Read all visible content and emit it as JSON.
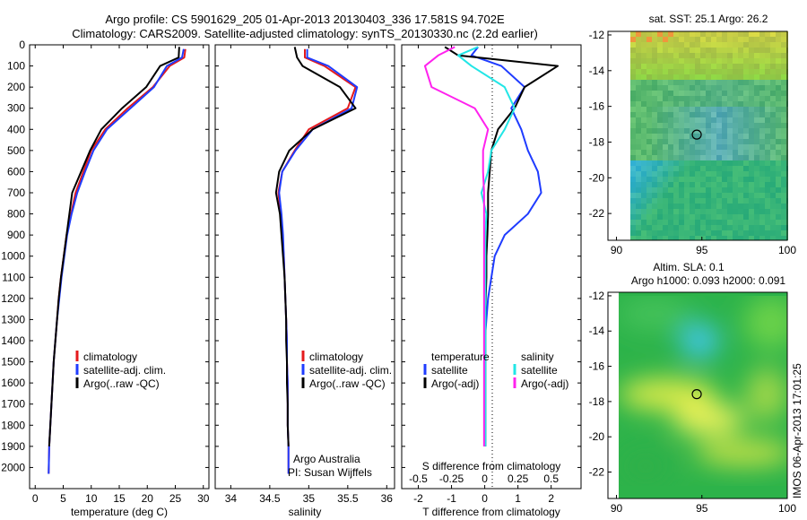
{
  "header": {
    "line1": "Argo profile: CS 5901629_205 01-Apr-2013 20130403_336 17.581S 94.702E",
    "line2": "Climatology: CARS2009. Satellite-adjusted climatology: synTS_20130330.nc (2.2d earlier)"
  },
  "colors": {
    "climatology": "#e41a1c",
    "satellite": "#1f3cff",
    "argo": "#000000",
    "sat_salinity": "#22e6e6",
    "argo_salinity": "#ff22ee"
  },
  "chart_data": [
    {
      "type": "line",
      "panel": "temperature",
      "xlabel": "temperature (deg C)",
      "ylabel": "",
      "xlim": [
        -1,
        31
      ],
      "ylim": [
        2100,
        0
      ],
      "xticks": [
        0,
        5,
        10,
        15,
        20,
        25,
        30
      ],
      "yticks": [
        0,
        100,
        200,
        300,
        400,
        500,
        600,
        700,
        800,
        900,
        1000,
        1100,
        1200,
        1300,
        1400,
        1500,
        1600,
        1700,
        1800,
        1900,
        2000
      ],
      "legend": [
        "climatology",
        "satellite-adj. clim.",
        "Argo(..raw -QC)"
      ],
      "legend_placement": "lower-center",
      "series": [
        {
          "name": "climatology",
          "color": "#e41a1c",
          "x": [
            26.8,
            26.6,
            24.0,
            21.0,
            16.5,
            12.5,
            10.0,
            8.6,
            7.2,
            6.4,
            5.6,
            5.1,
            4.6,
            4.2,
            3.9,
            3.6,
            3.3,
            3.1,
            2.9,
            2.7,
            2.5,
            2.4
          ],
          "y": [
            20,
            60,
            100,
            200,
            300,
            400,
            500,
            600,
            700,
            800,
            900,
            1000,
            1100,
            1200,
            1300,
            1400,
            1500,
            1600,
            1700,
            1800,
            1900,
            2030
          ]
        },
        {
          "name": "satellite-adj. clim.",
          "color": "#1f3cff",
          "x": [
            26.5,
            26.2,
            23.5,
            21.2,
            17.0,
            12.8,
            10.4,
            8.9,
            7.5,
            6.5,
            5.7,
            5.2,
            4.7,
            4.3,
            3.9,
            3.6,
            3.3,
            3.1,
            2.9,
            2.7,
            2.5,
            2.4
          ],
          "y": [
            20,
            60,
            100,
            200,
            300,
            400,
            500,
            600,
            700,
            800,
            900,
            1000,
            1100,
            1200,
            1300,
            1400,
            1500,
            1600,
            1700,
            1800,
            1900,
            2030
          ]
        },
        {
          "name": "Argo(..raw -QC)",
          "color": "#000000",
          "x": [
            25.7,
            25.6,
            22.3,
            19.8,
            15.5,
            11.8,
            9.8,
            8.2,
            6.6,
            6.1,
            5.6,
            5.1,
            4.6,
            4.2,
            3.9,
            3.6,
            3.3,
            3.1,
            2.9,
            2.7,
            2.5
          ],
          "y": [
            10,
            60,
            100,
            200,
            300,
            400,
            500,
            600,
            700,
            800,
            900,
            1000,
            1100,
            1200,
            1300,
            1400,
            1500,
            1600,
            1700,
            1800,
            1900
          ]
        }
      ]
    },
    {
      "type": "line",
      "panel": "salinity",
      "xlabel": "salinity",
      "ylabel": "",
      "xlim": [
        33.8,
        36.1
      ],
      "ylim": [
        2100,
        0
      ],
      "xticks": [
        34,
        34.5,
        35,
        35.5,
        36
      ],
      "legend": [
        "climatology",
        "satellite-adj. clim.",
        "Argo(..raw -QC)"
      ],
      "legend_placement": "lower-right",
      "annotations": [
        "Argo Australia",
        "PI: Susan Wijffels"
      ],
      "series": [
        {
          "name": "climatology",
          "color": "#e41a1c",
          "x": [
            34.95,
            34.95,
            35.2,
            35.6,
            35.5,
            35.0,
            34.82,
            34.66,
            34.61,
            34.64,
            34.66,
            34.68,
            34.69,
            34.7,
            34.71,
            34.72,
            34.72,
            34.73,
            34.73,
            34.73,
            34.74,
            34.74
          ],
          "y": [
            20,
            60,
            100,
            200,
            300,
            400,
            500,
            600,
            700,
            800,
            900,
            1000,
            1100,
            1200,
            1300,
            1400,
            1500,
            1600,
            1700,
            1800,
            1900,
            2030
          ]
        },
        {
          "name": "satellite-adj. clim.",
          "color": "#1f3cff",
          "x": [
            34.98,
            34.98,
            35.25,
            35.62,
            35.55,
            35.05,
            34.83,
            34.66,
            34.62,
            34.65,
            34.67,
            34.68,
            34.69,
            34.7,
            34.71,
            34.72,
            34.72,
            34.73,
            34.73,
            34.73,
            34.74,
            34.74
          ],
          "y": [
            20,
            60,
            100,
            200,
            300,
            400,
            500,
            600,
            700,
            800,
            900,
            1000,
            1100,
            1200,
            1300,
            1400,
            1500,
            1600,
            1700,
            1800,
            1900,
            2030
          ]
        },
        {
          "name": "Argo(..raw -QC)",
          "color": "#000000",
          "x": [
            34.82,
            34.85,
            34.92,
            35.4,
            35.6,
            35.05,
            34.75,
            34.62,
            34.58,
            34.63,
            34.65,
            34.67,
            34.69,
            34.7,
            34.71,
            34.71,
            34.72,
            34.72,
            34.73,
            34.73,
            34.74
          ],
          "y": [
            10,
            60,
            100,
            200,
            300,
            400,
            500,
            600,
            700,
            800,
            900,
            1000,
            1100,
            1200,
            1300,
            1400,
            1500,
            1600,
            1700,
            1800,
            1900
          ]
        }
      ]
    },
    {
      "type": "line",
      "panel": "difference",
      "xlabel": "T difference from climatology",
      "secondary_xlabel": "S difference from climatology",
      "xlim": [
        -2.5,
        2.9
      ],
      "ylim": [
        2100,
        0
      ],
      "xticks": [
        -2,
        -1,
        0,
        1,
        2
      ],
      "secondary_xticks": [
        "-0.5",
        "-0.25",
        "0",
        "0.25",
        "0.5"
      ],
      "legend_left_title": "temperature",
      "legend_right_title": "salinity",
      "legend_left": [
        "satellite",
        "Argo(-adj)"
      ],
      "legend_right": [
        "satellite",
        "Argo(-adj)"
      ],
      "legend_placement": "lower-center",
      "series": [
        {
          "name": "temperature satellite",
          "color": "#1f3cff",
          "x": [
            -0.2,
            -0.4,
            0.5,
            1.2,
            0.8,
            1.1,
            1.3,
            1.6,
            1.7,
            1.3,
            0.6,
            0.3,
            0.2,
            0.1,
            0.05,
            0.0,
            0.0,
            0.0,
            0.0,
            0.0,
            0.0
          ],
          "y": [
            10,
            50,
            100,
            200,
            300,
            400,
            500,
            600,
            700,
            800,
            900,
            1000,
            1100,
            1200,
            1300,
            1400,
            1500,
            1600,
            1700,
            1800,
            1900
          ]
        },
        {
          "name": "temperature Argo(-adj)",
          "color": "#000000",
          "x": [
            -1.2,
            -0.8,
            2.2,
            1.2,
            0.9,
            0.4,
            0.2,
            0.15,
            0.1,
            0.1,
            0.08,
            0.05,
            0.05,
            0.03,
            0.02,
            0.02,
            0.02,
            0.02,
            0.02,
            0.02,
            0.02
          ],
          "y": [
            10,
            50,
            100,
            200,
            300,
            400,
            500,
            600,
            700,
            800,
            900,
            1000,
            1100,
            1200,
            1300,
            1400,
            1500,
            1600,
            1700,
            1800,
            1900
          ]
        },
        {
          "name": "salinity satellite",
          "color": "#22e6e6",
          "x": [
            -0.2,
            -0.8,
            -0.4,
            0.6,
            0.9,
            0.6,
            0.2,
            0.1,
            -0.1,
            0.05,
            0.02,
            0.02,
            0.02,
            0.02,
            0.02,
            0.02,
            0.02,
            0.02,
            0.02,
            0.02,
            0.02
          ],
          "y": [
            10,
            50,
            100,
            200,
            300,
            400,
            500,
            600,
            700,
            800,
            900,
            1000,
            1100,
            1200,
            1300,
            1400,
            1500,
            1600,
            1700,
            1800,
            1900
          ]
        },
        {
          "name": "salinity Argo(-adj)",
          "color": "#ff22ee",
          "x": [
            -0.9,
            -1.4,
            -1.8,
            -1.6,
            -0.3,
            0.1,
            -0.05,
            -0.05,
            -0.02,
            -0.02,
            -0.02,
            -0.02,
            -0.02,
            -0.02,
            -0.02,
            -0.02,
            -0.02,
            -0.02,
            -0.02,
            -0.02,
            -0.02
          ],
          "y": [
            10,
            50,
            100,
            200,
            300,
            400,
            500,
            600,
            700,
            800,
            900,
            1000,
            1100,
            1200,
            1300,
            1400,
            1500,
            1600,
            1700,
            1800,
            1900
          ]
        }
      ]
    },
    {
      "type": "heatmap",
      "panel": "sst_map",
      "title": "sat. SST: 25.1 Argo: 26.2",
      "xlim": [
        89.5,
        100
      ],
      "ylim": [
        -23.5,
        -11.8
      ],
      "xticks": [
        90,
        95,
        100
      ],
      "yticks": [
        -12,
        -14,
        -16,
        -18,
        -20,
        -22
      ],
      "marker": {
        "lon": 94.7,
        "lat": -17.58
      }
    },
    {
      "type": "heatmap",
      "panel": "sla_map",
      "title": "Altim. SLA: 0.1",
      "subtitle": "Argo h1000: 0.093 h2000: 0.091",
      "xlim": [
        89.5,
        100
      ],
      "ylim": [
        -23.5,
        -11.8
      ],
      "xticks": [
        90,
        95,
        100
      ],
      "yticks": [
        -12,
        -14,
        -16,
        -18,
        -20,
        -22
      ],
      "marker": {
        "lon": 94.7,
        "lat": -17.58
      }
    }
  ],
  "side_label": "IMOS 06-Apr-2013 17:01:25"
}
